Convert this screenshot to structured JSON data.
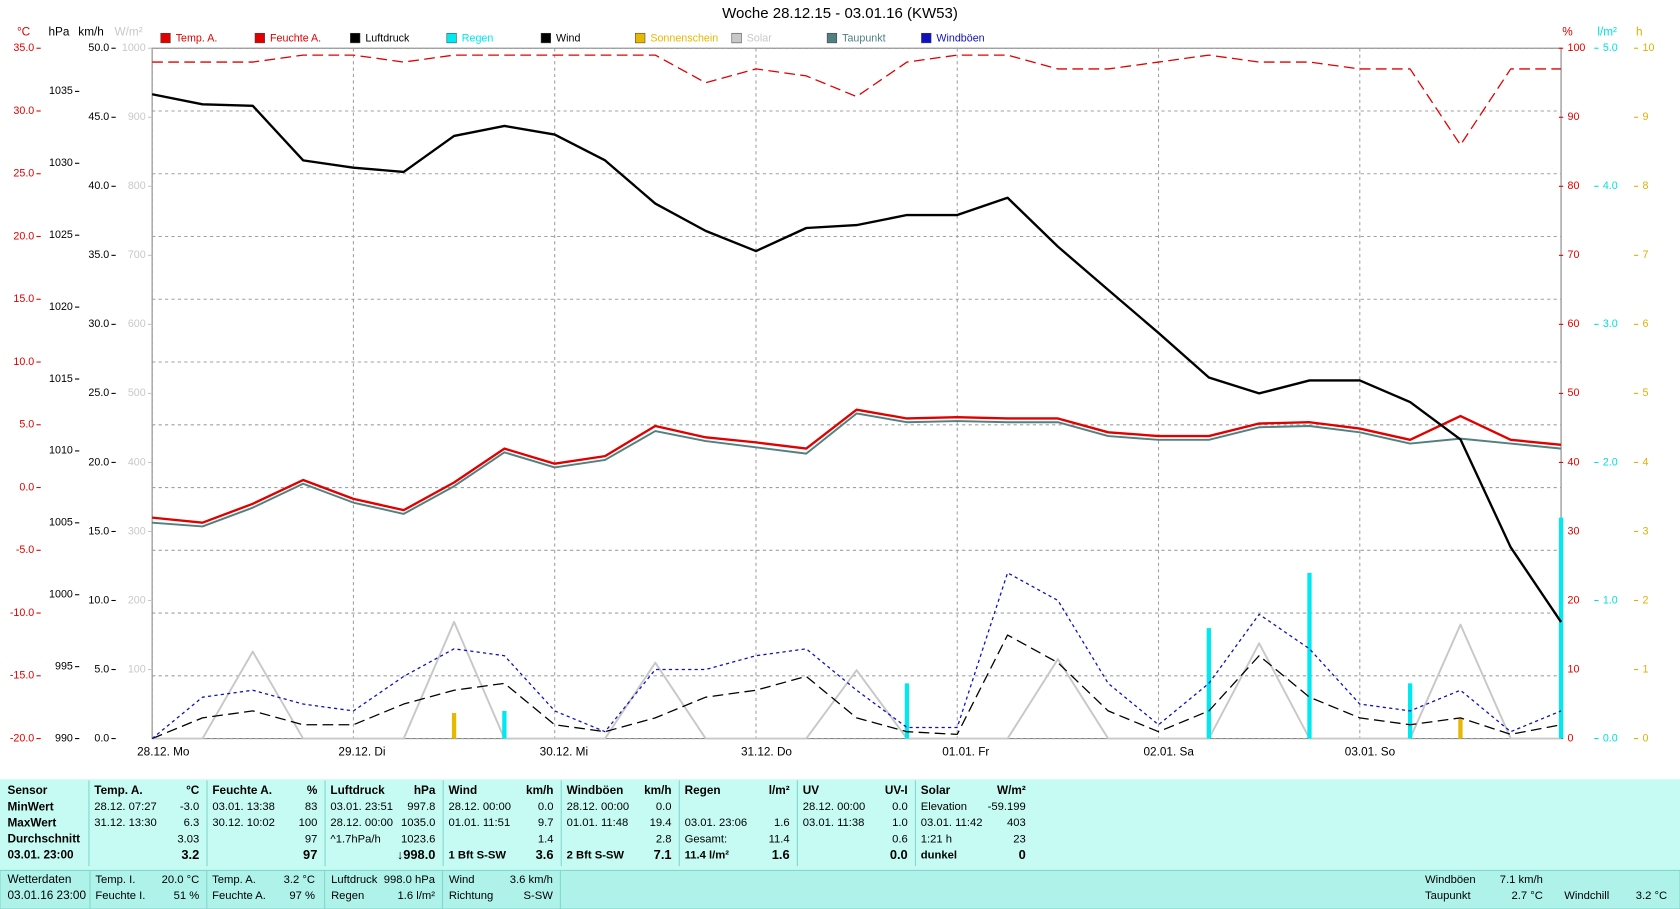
{
  "chart_data": {
    "type": "line",
    "title": "Woche 28.12.15 - 03.01.16 (KW53)",
    "categories": [
      "28.12. Mo",
      null,
      null,
      null,
      "29.12. Di",
      null,
      null,
      null,
      "30.12. Mi",
      null,
      null,
      null,
      "31.12. Do",
      null,
      null,
      null,
      "01.01. Fr",
      null,
      null,
      null,
      "02.01. Sa",
      null,
      null,
      null,
      "03.01. So",
      null,
      null,
      null,
      null
    ],
    "grid": true,
    "axes": [
      {
        "label": "°C",
        "color": "#e00000",
        "lim": [
          -20,
          35
        ],
        "ticks": [
          {
            "value": -20,
            "label": "-20.0"
          },
          {
            "value": -15,
            "label": "-15.0"
          },
          {
            "value": -10,
            "label": "-10.0"
          },
          {
            "value": -5,
            "label": "-5.0"
          },
          {
            "value": 0,
            "label": "0.0"
          },
          {
            "value": 5,
            "label": "5.0"
          },
          {
            "value": 10,
            "label": "10.0"
          },
          {
            "value": 15,
            "label": "15.0"
          },
          {
            "value": 20,
            "label": "20.0"
          },
          {
            "value": 25,
            "label": "25.0"
          },
          {
            "value": 30,
            "label": "30.0"
          },
          {
            "value": 35,
            "label": "35.0"
          }
        ]
      },
      {
        "label": "hPa",
        "color": "#000000",
        "lim": [
          990,
          1038
        ],
        "ticks": [
          990,
          995,
          1000,
          1005,
          1010,
          1015,
          1020,
          1025,
          1030,
          1035
        ]
      },
      {
        "label": "km/h",
        "color": "#000000",
        "lim": [
          0,
          50
        ],
        "ticks": [
          {
            "value": 0,
            "label": "0.0"
          },
          {
            "value": 5,
            "label": "5.0"
          },
          {
            "value": 10,
            "label": "10.0"
          },
          {
            "value": 15,
            "label": "15.0"
          },
          {
            "value": 20,
            "label": "20.0"
          },
          {
            "value": 25,
            "label": "25.0"
          },
          {
            "value": 30,
            "label": "30.0"
          },
          {
            "value": 35,
            "label": "35.0"
          },
          {
            "value": 40,
            "label": "40.0"
          },
          {
            "value": 45,
            "label": "45.0"
          },
          {
            "value": 50,
            "label": "50.0"
          }
        ]
      },
      {
        "label": "W/m²",
        "color": "#c8c8c8",
        "lim": [
          0,
          1000
        ],
        "ticks": [
          100,
          200,
          300,
          400,
          500,
          600,
          700,
          800,
          900,
          1000
        ]
      },
      {
        "label": "%",
        "color": "#e00000",
        "lim": [
          0,
          100
        ],
        "ticks": [
          0,
          10,
          20,
          30,
          40,
          50,
          60,
          70,
          80,
          90,
          100
        ]
      },
      {
        "label": "l/m²",
        "color": "#00e0e0",
        "lim": [
          0,
          5
        ],
        "ticks": [
          {
            "value": 0,
            "label": "0.0"
          },
          {
            "value": 1,
            "label": "1.0"
          },
          {
            "value": 2,
            "label": "2.0"
          },
          {
            "value": 3,
            "label": "3.0"
          },
          {
            "value": 4,
            "label": "4.0"
          },
          {
            "value": 5,
            "label": "5.0"
          }
        ]
      },
      {
        "label": "h",
        "color": "#e0b000",
        "lim": [
          0,
          10
        ],
        "ticks": [
          0,
          1,
          2,
          3,
          4,
          5,
          6,
          7,
          8,
          9,
          10
        ]
      }
    ],
    "series": [
      {
        "name": "Temp. A.",
        "color": "#e00000",
        "kind": "line",
        "axis": 0,
        "values": [
          -2.4,
          -2.8,
          -1.3,
          0.6,
          -0.9,
          -1.8,
          0.4,
          3.1,
          1.9,
          2.5,
          4.9,
          4.0,
          3.6,
          3.1,
          6.2,
          5.5,
          5.6,
          5.5,
          5.5,
          4.4,
          4.1,
          4.1,
          5.1,
          5.2,
          4.7,
          3.8,
          5.7,
          3.8,
          3.4
        ]
      },
      {
        "name": "Feuchte A.",
        "color": "#e00000",
        "kind": "dash",
        "axis": 4,
        "values": [
          98,
          98,
          98,
          99,
          99,
          98,
          99,
          99,
          99,
          99,
          99,
          95,
          97,
          96,
          93,
          98,
          99,
          99,
          97,
          97,
          98,
          99,
          98,
          98,
          97,
          97,
          86,
          97,
          97
        ]
      },
      {
        "name": "Luftdruck",
        "color": "#000000",
        "kind": "line",
        "axis": 1,
        "values": [
          1034.8,
          1034.1,
          1034.0,
          1030.2,
          1029.7,
          1029.4,
          1031.9,
          1032.6,
          1032.0,
          1030.2,
          1027.2,
          1025.3,
          1023.9,
          1025.5,
          1025.7,
          1026.4,
          1026.4,
          1027.6,
          1024.2,
          1021.2,
          1018.2,
          1015.1,
          1014.0,
          1014.9,
          1014.9,
          1013.4,
          1010.8,
          1003.3,
          998.1
        ]
      },
      {
        "name": "Regen",
        "color": "#00e8f0",
        "kind": "bar",
        "axis": 5,
        "values": [
          0,
          0,
          0,
          0,
          0,
          0,
          0,
          0.2,
          0,
          0,
          0,
          0,
          0,
          0,
          0,
          0.4,
          0,
          0,
          0,
          0,
          0,
          0.8,
          0,
          1.2,
          0,
          0.4,
          0,
          0,
          1.6
        ]
      },
      {
        "name": "Wind",
        "color": "#000000",
        "kind": "dash",
        "axis": 2,
        "values": [
          0,
          1.5,
          2.0,
          1.0,
          1.0,
          2.5,
          3.5,
          4.0,
          1.0,
          0.5,
          1.5,
          3.0,
          3.5,
          4.5,
          1.5,
          0.5,
          0.3,
          7.5,
          5.5,
          2.0,
          0.5,
          2.0,
          6.0,
          3.0,
          1.5,
          1.0,
          1.5,
          0.3,
          1.0
        ]
      },
      {
        "name": "Sonnenschein",
        "color": "#e8b800",
        "kind": "bar",
        "axis": 6,
        "values": [
          0,
          0,
          0,
          0,
          0,
          0,
          0.37,
          0,
          0,
          0,
          0,
          0,
          0,
          0,
          0,
          0,
          0,
          0,
          0,
          0,
          0,
          0,
          0,
          0,
          0,
          0,
          0.3,
          0,
          0
        ]
      },
      {
        "name": "Solar",
        "color": "#c8c8c8",
        "kind": "line",
        "axis": 3,
        "values": [
          0,
          0,
          126,
          0,
          0,
          0,
          169,
          0,
          0,
          0,
          110,
          0,
          0,
          0,
          99,
          0,
          0,
          0,
          115,
          0,
          0,
          0,
          138,
          0,
          0,
          0,
          165,
          0,
          0
        ]
      },
      {
        "name": "Taupunkt",
        "color": "#508080",
        "kind": "line",
        "axis": 0,
        "values": [
          -2.8,
          -3.1,
          -1.6,
          0.3,
          -1.2,
          -2.1,
          0.1,
          2.8,
          1.6,
          2.2,
          4.5,
          3.7,
          3.2,
          2.7,
          5.9,
          5.2,
          5.3,
          5.2,
          5.2,
          4.1,
          3.8,
          3.8,
          4.8,
          4.9,
          4.4,
          3.5,
          3.9,
          3.5,
          3.1
        ]
      },
      {
        "name": "Windböen",
        "color": "#1010c0",
        "kind": "dot",
        "axis": 2,
        "values": [
          0,
          3.0,
          3.5,
          2.5,
          2.0,
          4.5,
          6.5,
          6.0,
          2.0,
          0.5,
          5.0,
          5.0,
          6.0,
          6.5,
          3.5,
          0.8,
          0.8,
          12.0,
          10.0,
          4.0,
          1.0,
          4.0,
          9.0,
          6.5,
          2.5,
          2.0,
          3.5,
          0.5,
          2.0
        ]
      }
    ]
  },
  "summary": {
    "sensor": {
      "header": "Sensor",
      "rows": [
        "MinWert",
        "MaxWert",
        "Durchschnitt",
        "03.01.  23:00"
      ]
    },
    "sections": [
      {
        "header": "Temp. A.",
        "unit": "°C",
        "rows": [
          [
            "28.12.  07:27",
            "-3.0"
          ],
          [
            "31.12.  13:30",
            "6.3"
          ],
          [
            null,
            "3.03"
          ],
          [
            null,
            "3.2"
          ]
        ]
      },
      {
        "header": "Feuchte A.",
        "unit": "%",
        "rows": [
          [
            "03.01.  13:38",
            "83"
          ],
          [
            "30.12.  10:02",
            "100"
          ],
          [
            null,
            "97"
          ],
          [
            null,
            "97"
          ]
        ]
      },
      {
        "header": "Luftdruck",
        "unit": "hPa",
        "rows": [
          [
            "03.01.  23:51",
            "997.8"
          ],
          [
            "28.12.  00:00",
            "1035.0"
          ],
          [
            "^1.7hPa/h",
            "1023.6"
          ],
          [
            null,
            "↓998.0"
          ]
        ]
      },
      {
        "header": "Wind",
        "unit": "km/h",
        "rows": [
          [
            "28.12.  00:00",
            "0.0"
          ],
          [
            "01.01.  11:51",
            "9.7"
          ],
          [
            null,
            "1.4"
          ],
          [
            "1 Bft S-SW",
            "3.6"
          ]
        ]
      },
      {
        "header": "Windböen",
        "unit": "km/h",
        "rows": [
          [
            "28.12.  00:00",
            "0.0"
          ],
          [
            "01.01.  11:48",
            "19.4"
          ],
          [
            null,
            "2.8"
          ],
          [
            "2 Bft S-SW",
            "7.1"
          ]
        ]
      },
      {
        "header": "Regen",
        "unit": "l/m²",
        "rows": [
          [
            null,
            null
          ],
          [
            "03.01.  23:06",
            "1.6"
          ],
          [
            "Gesamt:",
            "11.4"
          ],
          [
            "11.4 l/m²",
            "1.6"
          ]
        ]
      },
      {
        "header": "UV",
        "unit": "UV-I",
        "rows": [
          [
            "28.12.  00:00",
            "0.0"
          ],
          [
            "03.01.  11:38",
            "1.0"
          ],
          [
            null,
            "0.6"
          ],
          [
            null,
            "0.0"
          ]
        ]
      },
      {
        "header": "Solar",
        "unit": "W/m²",
        "rows": [
          [
            "Elevation",
            "-59.199"
          ],
          [
            "03.01.  11:42",
            "403"
          ],
          [
            "1:21 h",
            "23"
          ],
          [
            "dunkel",
            "0"
          ]
        ]
      }
    ]
  },
  "footer": {
    "station": {
      "label": "Wetterdaten",
      "time": "03.01.16 23:00"
    },
    "items": [
      {
        "label": "Temp. I.",
        "value": "20.0 °C"
      },
      {
        "label": "Feuchte I.",
        "value": "51 %"
      },
      {
        "label": "Temp. A.",
        "value": "3.2 °C"
      },
      {
        "label": "Feuchte A.",
        "value": "97 %"
      },
      {
        "label": "Luftdruck",
        "value": "998.0 hPa"
      },
      {
        "label": "Regen",
        "value": "1.6 l/m²"
      },
      {
        "label": "Wind",
        "value": "3.6 km/h"
      },
      {
        "label": "Richtung",
        "value": "S-SW"
      },
      {
        "label": "Windböen",
        "value": "7.1 km/h"
      },
      {
        "label": "Taupunkt",
        "value": "2.7 °C"
      },
      {
        "label": "Windchill",
        "value": "3.2 °C"
      }
    ]
  }
}
